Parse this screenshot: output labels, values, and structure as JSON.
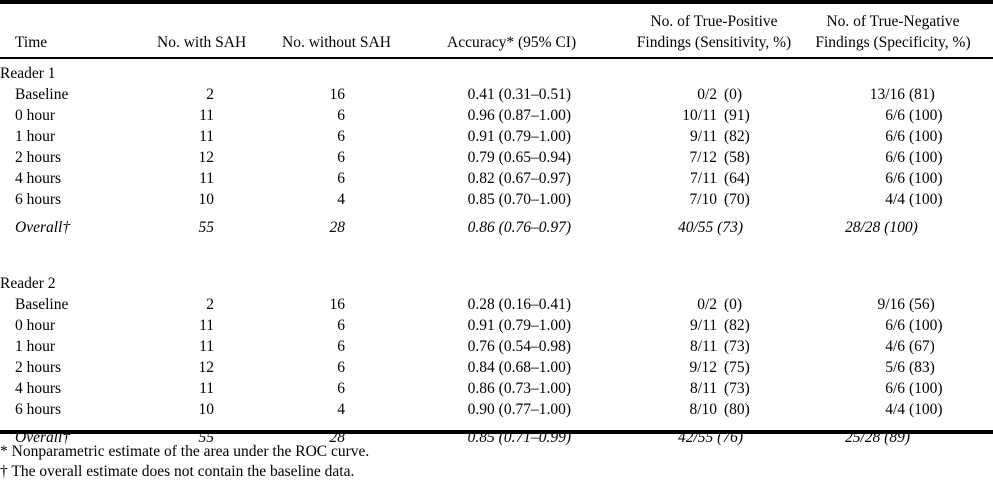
{
  "table": {
    "headers": {
      "time": "Time",
      "sah": "No. with SAH",
      "nosah": "No. without SAH",
      "acc": "Accuracy* (95% CI)",
      "tp": [
        "No. of True-Positive",
        "Findings (Sensitivity, %)"
      ],
      "tn": [
        "No. of True-Negative",
        "Findings (Specificity, %)"
      ]
    },
    "groups": [
      {
        "label": "Reader 1",
        "rows": [
          {
            "time": "Baseline",
            "sah": "2",
            "nosah": "16",
            "acc": "0.41 (0.31–0.51)",
            "tp_n": "0/2",
            "tp_p": "(0)",
            "tn_n": "13/16",
            "tn_p": "(81)"
          },
          {
            "time": "0 hour",
            "sah": "11",
            "nosah": "6",
            "acc": "0.96 (0.87–1.00)",
            "tp_n": "10/11",
            "tp_p": "(91)",
            "tn_n": "6/6",
            "tn_p": "(100)"
          },
          {
            "time": "1 hour",
            "sah": "11",
            "nosah": "6",
            "acc": "0.91 (0.79–1.00)",
            "tp_n": "9/11",
            "tp_p": "(82)",
            "tn_n": "6/6",
            "tn_p": "(100)"
          },
          {
            "time": "2 hours",
            "sah": "12",
            "nosah": "6",
            "acc": "0.79 (0.65–0.94)",
            "tp_n": "7/12",
            "tp_p": "(58)",
            "tn_n": "6/6",
            "tn_p": "(100)"
          },
          {
            "time": "4 hours",
            "sah": "11",
            "nosah": "6",
            "acc": "0.82 (0.67–0.97)",
            "tp_n": "7/11",
            "tp_p": "(64)",
            "tn_n": "6/6",
            "tn_p": "(100)"
          },
          {
            "time": "6 hours",
            "sah": "10",
            "nosah": "4",
            "acc": "0.85 (0.70–1.00)",
            "tp_n": "7/10",
            "tp_p": "(70)",
            "tn_n": "4/4",
            "tn_p": "(100)"
          }
        ],
        "overall": {
          "time": "Overall†",
          "sah": "55",
          "nosah": "28",
          "acc": "0.86 (0.76–0.97)",
          "tp": "40/55 (73)",
          "tn": "28/28 (100)"
        }
      },
      {
        "label": "Reader 2",
        "rows": [
          {
            "time": "Baseline",
            "sah": "2",
            "nosah": "16",
            "acc": "0.28 (0.16–0.41)",
            "tp_n": "0/2",
            "tp_p": "(0)",
            "tn_n": "9/16",
            "tn_p": "(56)"
          },
          {
            "time": "0 hour",
            "sah": "11",
            "nosah": "6",
            "acc": "0.91 (0.79–1.00)",
            "tp_n": "9/11",
            "tp_p": "(82)",
            "tn_n": "6/6",
            "tn_p": "(100)"
          },
          {
            "time": "1 hour",
            "sah": "11",
            "nosah": "6",
            "acc": "0.76 (0.54–0.98)",
            "tp_n": "8/11",
            "tp_p": "(73)",
            "tn_n": "4/6",
            "tn_p": "(67)"
          },
          {
            "time": "2 hours",
            "sah": "12",
            "nosah": "6",
            "acc": "0.84 (0.68–1.00)",
            "tp_n": "9/12",
            "tp_p": "(75)",
            "tn_n": "5/6",
            "tn_p": "(83)"
          },
          {
            "time": "4 hours",
            "sah": "11",
            "nosah": "6",
            "acc": "0.86 (0.73–1.00)",
            "tp_n": "8/11",
            "tp_p": "(73)",
            "tn_n": "6/6",
            "tn_p": "(100)"
          },
          {
            "time": "6 hours",
            "sah": "10",
            "nosah": "4",
            "acc": "0.90 (0.77–1.00)",
            "tp_n": "8/10",
            "tp_p": "(80)",
            "tn_n": "4/4",
            "tn_p": "(100)"
          }
        ],
        "overall": {
          "time": "Overall†",
          "sah": "55",
          "nosah": "28",
          "acc": "0.85 (0.71–0.99)",
          "tp": "42/55 (76)",
          "tn": "25/28 (89)"
        }
      }
    ]
  },
  "footnotes": [
    "* Nonparametric estimate of the area under the ROC curve.",
    "† The overall estimate does not contain the baseline data."
  ]
}
